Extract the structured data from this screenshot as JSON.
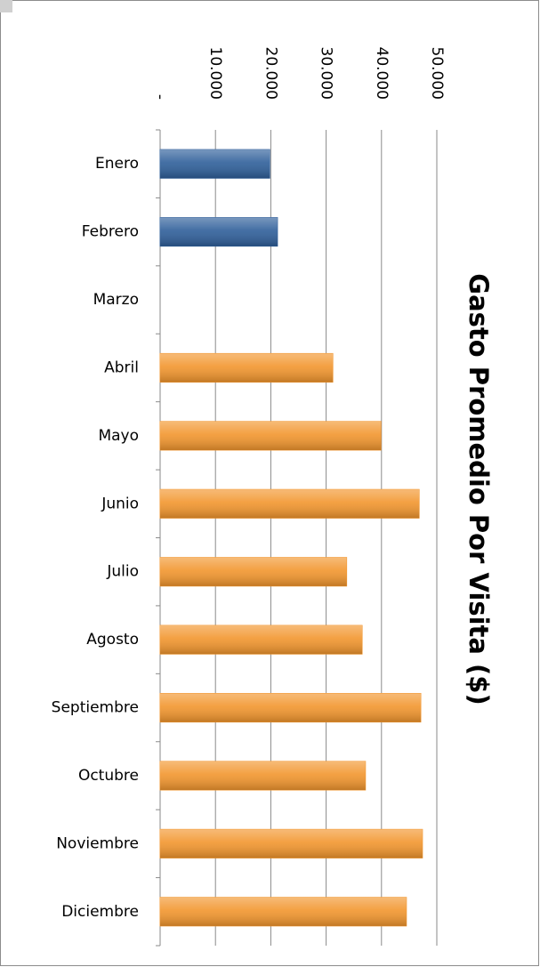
{
  "chart_data": {
    "type": "bar",
    "orientation": "horizontal",
    "title": "Gasto Promedio Por Visita ($)",
    "categories": [
      "Enero",
      "Febrero",
      "Marzo",
      "Abril",
      "Mayo",
      "Junio",
      "Julio",
      "Agosto",
      "Septiembre",
      "Octubre",
      "Noviembre",
      "Diciembre"
    ],
    "values": [
      19800,
      21200,
      null,
      31200,
      39900,
      46800,
      33700,
      36500,
      47100,
      37100,
      47400,
      44500
    ],
    "colors": [
      "#2f5f9a",
      "#2f5f9a",
      "#f2962e",
      "#f2962e",
      "#f2962e",
      "#f2962e",
      "#f2962e",
      "#f2962e",
      "#f2962e",
      "#f2962e",
      "#f2962e",
      "#f2962e"
    ],
    "xlim": [
      0,
      50000
    ],
    "xticks": [
      {
        "value": 0,
        "label": "-"
      },
      {
        "value": 10000,
        "label": "10.000"
      },
      {
        "value": 20000,
        "label": "20.000"
      },
      {
        "value": 30000,
        "label": "30.000"
      },
      {
        "value": 40000,
        "label": "40.000"
      },
      {
        "value": 50000,
        "label": "50.000"
      }
    ],
    "grid": true
  }
}
